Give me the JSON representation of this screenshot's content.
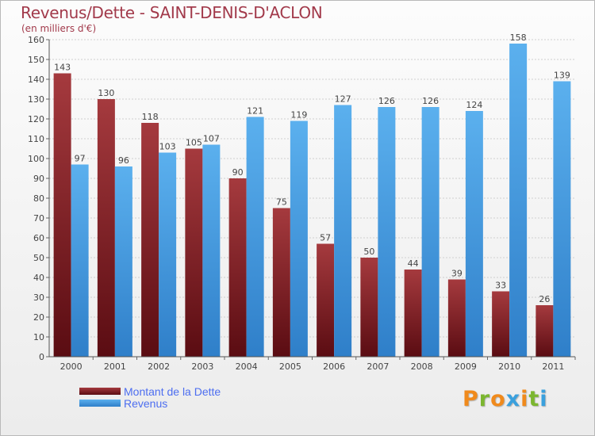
{
  "title": "Revenus/Dette - SAINT-DENIS-D'ACLON",
  "subtitle": "(en milliers d'€)",
  "brand": {
    "letters": [
      "P",
      "r",
      "o",
      "x",
      "i",
      "t",
      "i"
    ],
    "letter_colors": [
      "#f08a1c",
      "#7bb62f",
      "#f08a1c",
      "#3aa0dd",
      "#f08a1c",
      "#7bb62f",
      "#3aa0dd"
    ]
  },
  "legend": [
    {
      "label": "Montant de la Dette",
      "color": "#7a1f24"
    },
    {
      "label": "Revenus",
      "color": "#4aa3e6"
    }
  ],
  "chart_data": {
    "type": "bar",
    "categories": [
      "2000",
      "2001",
      "2002",
      "2003",
      "2004",
      "2005",
      "2006",
      "2007",
      "2008",
      "2009",
      "2010",
      "2011"
    ],
    "series": [
      {
        "name": "Montant de la Dette",
        "values": [
          143,
          130,
          118,
          105,
          90,
          75,
          57,
          50,
          44,
          39,
          33,
          26
        ],
        "color": "#7a1f24"
      },
      {
        "name": "Revenus",
        "values": [
          97,
          96,
          103,
          107,
          121,
          119,
          127,
          126,
          126,
          124,
          158,
          139
        ],
        "color": "#4aa3e6"
      }
    ],
    "ylim": [
      0,
      160
    ],
    "yticks": [
      0,
      10,
      20,
      30,
      40,
      50,
      60,
      70,
      80,
      90,
      100,
      110,
      120,
      130,
      140,
      150,
      160
    ],
    "grid": true
  }
}
